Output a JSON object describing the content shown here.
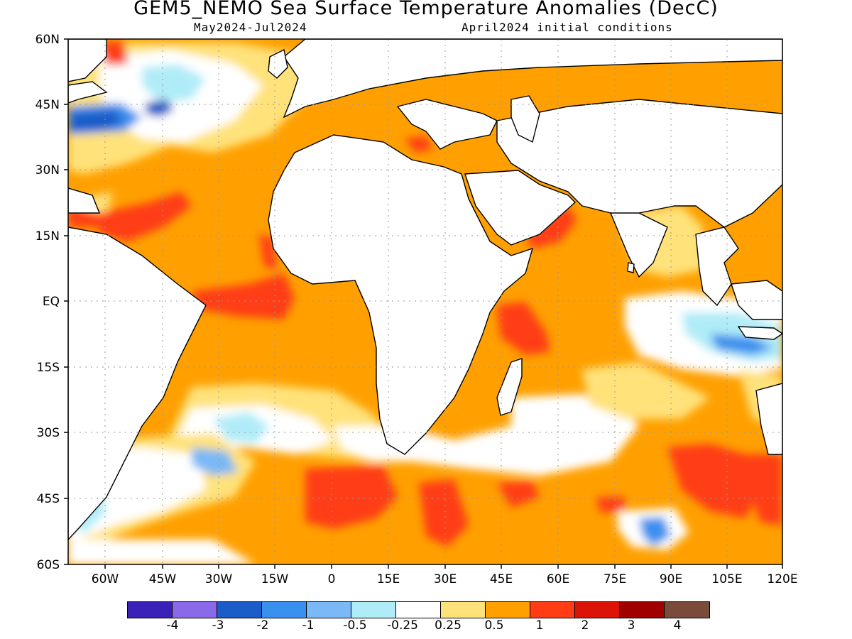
{
  "title": "GEM5_NEMO Sea Surface Temperature Anomalies (DecC)",
  "period": "May2024-Jul2024",
  "init": "April2024 initial conditions",
  "lat_ticks": [
    "60N",
    "45N",
    "30N",
    "15N",
    "EQ",
    "15S",
    "30S",
    "45S",
    "60S"
  ],
  "lon_ticks": [
    "60W",
    "45W",
    "30W",
    "15W",
    "0",
    "15E",
    "30E",
    "45E",
    "60E",
    "75E",
    "90E",
    "105E",
    "120E"
  ],
  "legend": {
    "colors": [
      "#3a22b8",
      "#8a6ae8",
      "#1a5cc8",
      "#3a90ee",
      "#7ab8f6",
      "#b0ecf8",
      "#ffffff",
      "#ffe27a",
      "#ffa000",
      "#ff3c14",
      "#dc1408",
      "#a00000",
      "#7a4a3a"
    ],
    "labels": [
      "-4",
      "-3",
      "-2",
      "-1",
      "-0.5",
      "-0.25",
      "0.25",
      "0.5",
      "1",
      "2",
      "3",
      "4"
    ]
  }
}
